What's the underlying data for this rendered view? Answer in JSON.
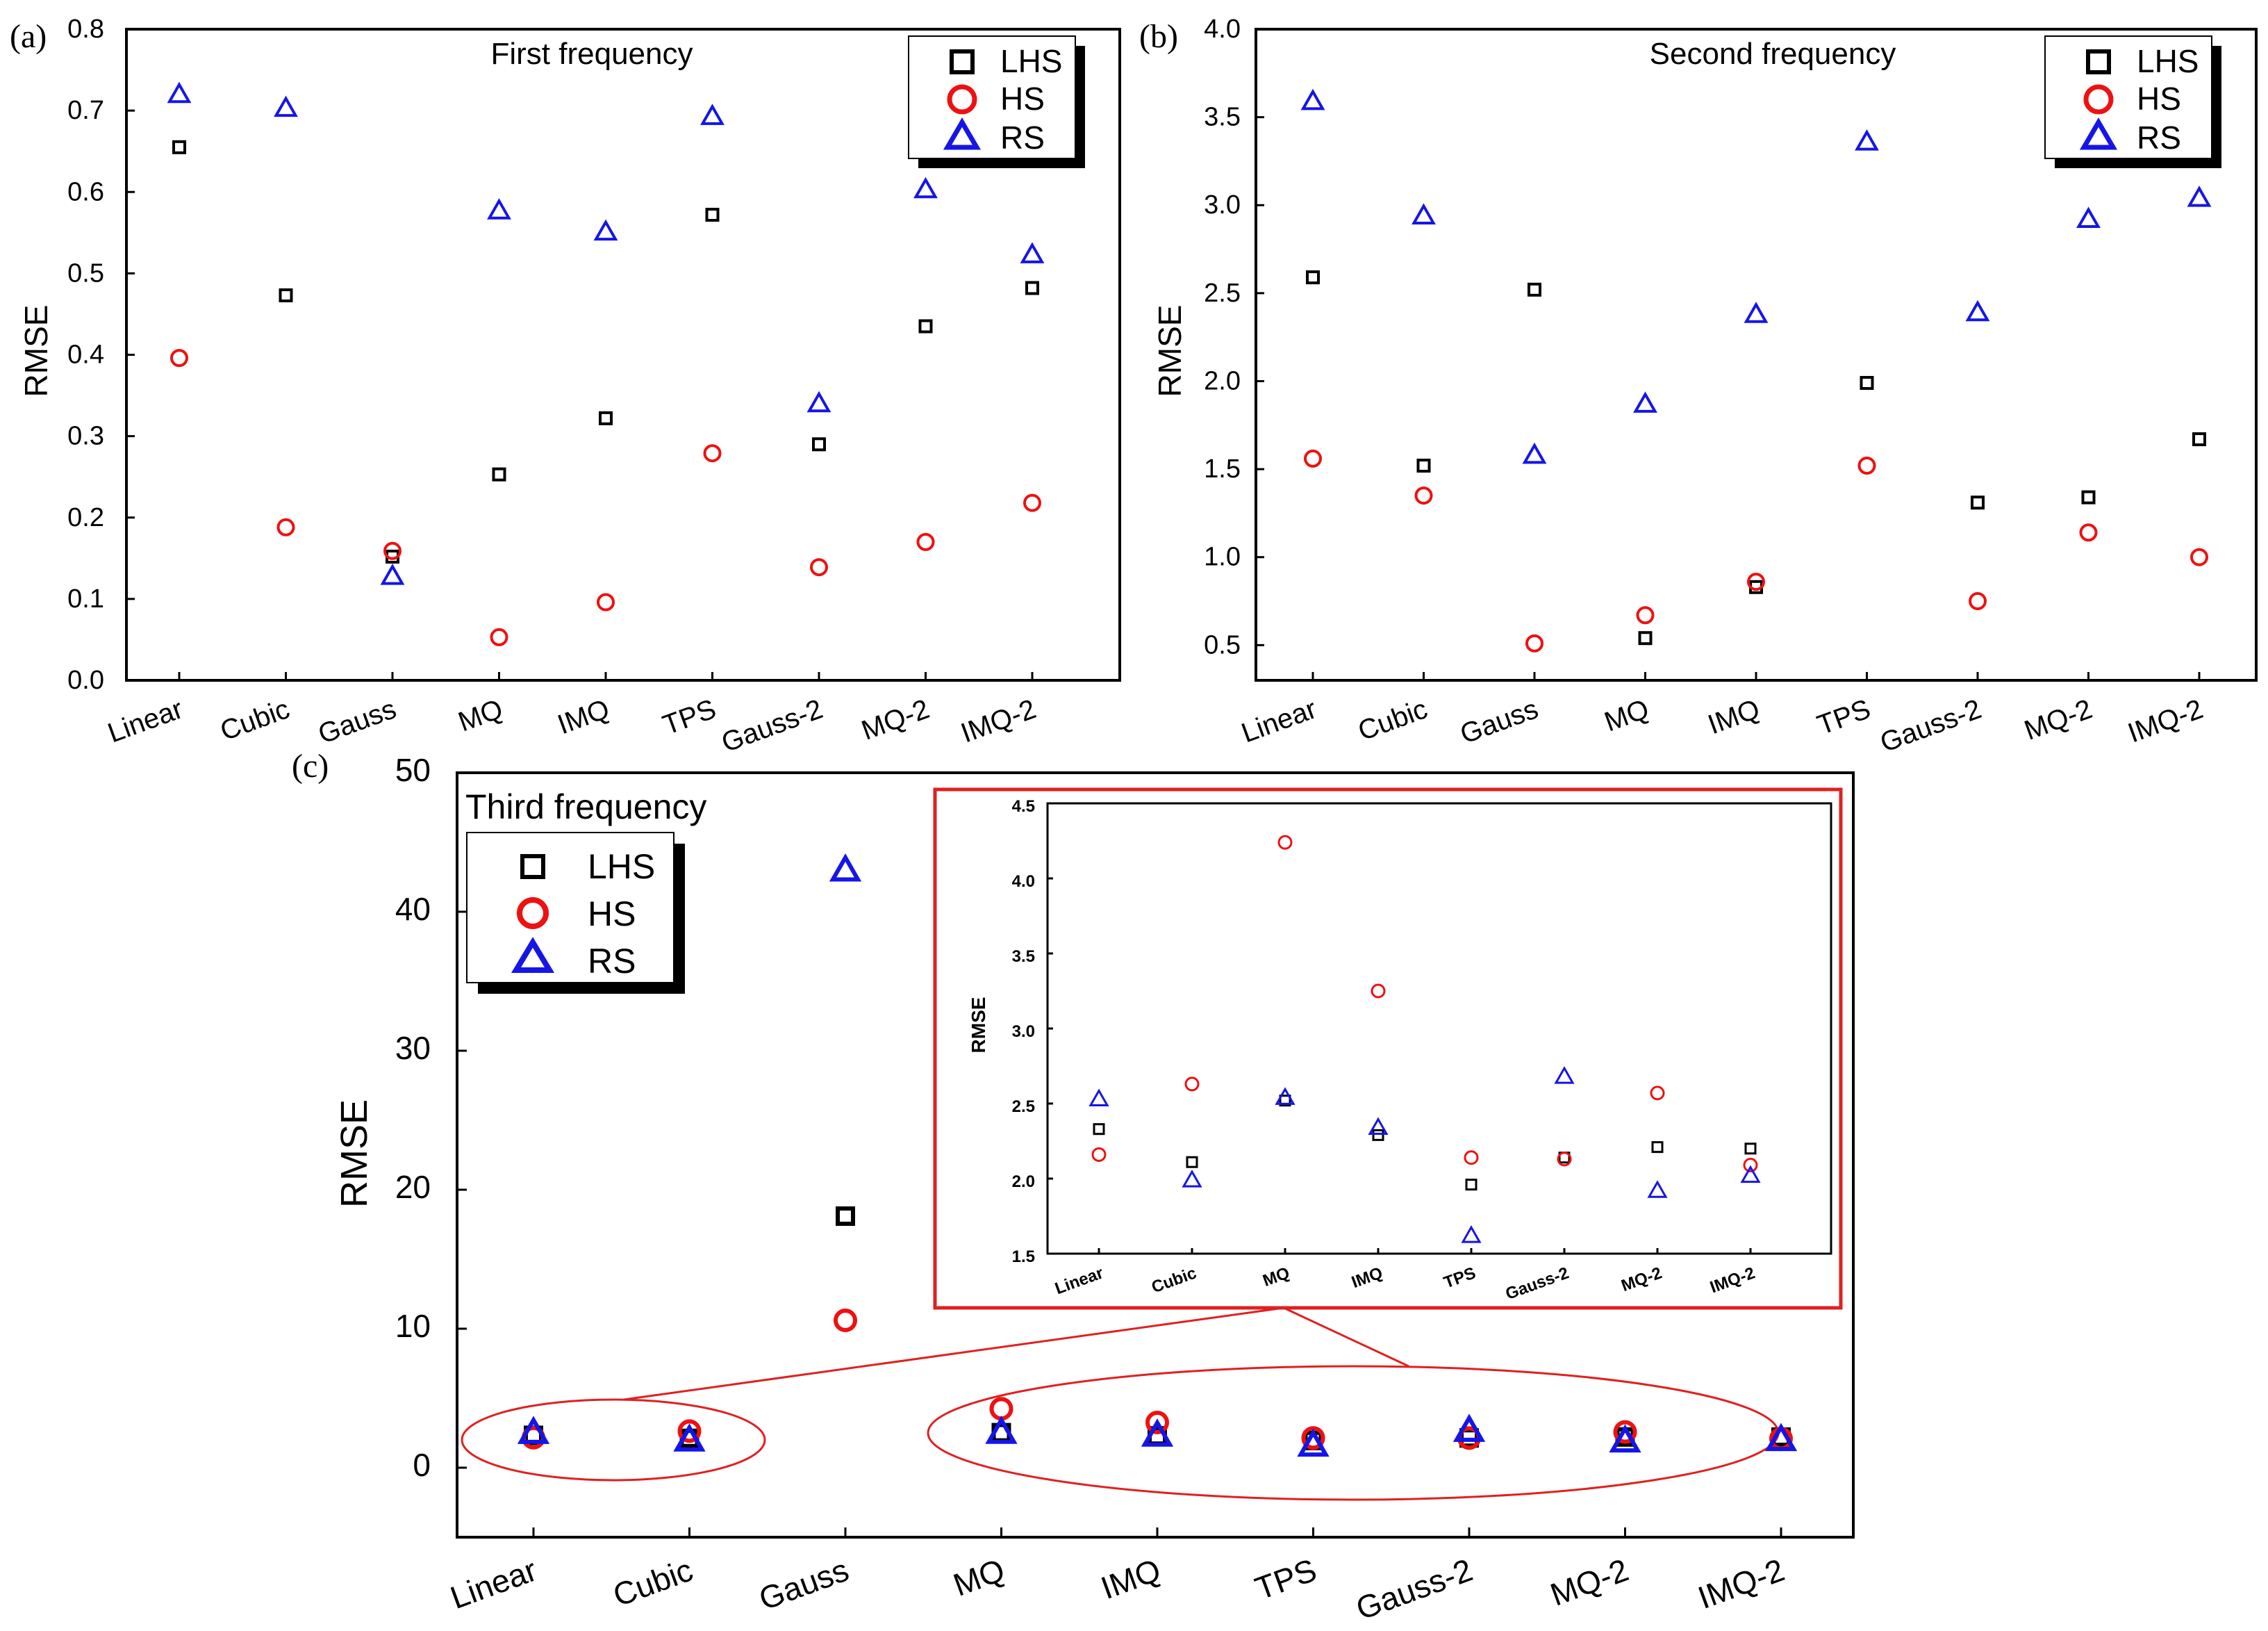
{
  "figure": {
    "categories": [
      "Linear",
      "Cubic",
      "Gauss",
      "MQ",
      "IMQ",
      "TPS",
      "Gauss-2",
      "MQ-2",
      "IMQ-2"
    ],
    "legend": [
      "LHS",
      "HS",
      "RS"
    ],
    "colors": {
      "LHS": "#000000",
      "HS": "#ee1111",
      "RS": "#1515e8",
      "highlight": "#e02020"
    }
  },
  "chart_data": [
    {
      "type": "scatter",
      "panel_label": "(a)",
      "title": "First frequency",
      "ylabel": "RMSE",
      "xlabel": "",
      "ylim": [
        0.0,
        0.8
      ],
      "yticks": [
        "0.0",
        "0.1",
        "0.2",
        "0.3",
        "0.4",
        "0.5",
        "0.6",
        "0.7",
        "0.8"
      ],
      "legend_position": "top-right",
      "series": [
        {
          "name": "LHS",
          "values": [
            0.655,
            0.473,
            0.152,
            0.253,
            0.322,
            0.572,
            0.29,
            0.435,
            0.482
          ]
        },
        {
          "name": "HS",
          "values": [
            0.396,
            0.188,
            0.159,
            0.053,
            0.096,
            0.279,
            0.139,
            0.17,
            0.218
          ]
        },
        {
          "name": "RS",
          "values": [
            0.72,
            0.703,
            0.128,
            0.577,
            0.551,
            0.693,
            0.34,
            0.603,
            0.523
          ]
        }
      ]
    },
    {
      "type": "scatter",
      "panel_label": "(b)",
      "title": "Second frequency",
      "ylabel": "RMSE",
      "xlabel": "",
      "ylim": [
        0.3,
        4.0
      ],
      "yticks": [
        "0.5",
        "1.0",
        "1.5",
        "2.0",
        "2.5",
        "3.0",
        "3.5",
        "4.0"
      ],
      "legend_position": "top-right",
      "series": [
        {
          "name": "LHS",
          "values": [
            2.59,
            1.52,
            2.52,
            0.54,
            0.83,
            1.99,
            1.31,
            1.34,
            1.67
          ]
        },
        {
          "name": "HS",
          "values": [
            1.56,
            1.35,
            0.51,
            0.67,
            0.86,
            1.52,
            0.75,
            1.14,
            1.0
          ]
        },
        {
          "name": "RS",
          "values": [
            3.59,
            2.94,
            1.58,
            1.87,
            2.38,
            3.36,
            2.39,
            2.92,
            3.04
          ]
        }
      ]
    },
    {
      "type": "scatter",
      "panel_label": "(c)",
      "title": "Third frequency",
      "ylabel": "RMSE",
      "xlabel": "",
      "ylim": [
        -5,
        50
      ],
      "yticks": [
        "0",
        "10",
        "20",
        "30",
        "40",
        "50"
      ],
      "legend_position": "top-left",
      "series": [
        {
          "name": "LHS",
          "values": [
            2.33,
            2.11,
            18.1,
            2.52,
            2.29,
            1.96,
            2.14,
            2.21,
            2.2
          ]
        },
        {
          "name": "HS",
          "values": [
            2.16,
            2.63,
            10.6,
            4.24,
            3.25,
            2.14,
            2.13,
            2.57,
            2.09
          ]
        },
        {
          "name": "RS",
          "values": [
            2.53,
            1.99,
            43.0,
            2.54,
            2.34,
            1.62,
            2.68,
            1.92,
            2.02
          ]
        }
      ]
    },
    {
      "type": "scatter",
      "panel_label": "",
      "title": "",
      "ylabel": "RMSE",
      "xlabel": "",
      "ylim": [
        1.5,
        4.5
      ],
      "yticks": [
        "1.5",
        "2.0",
        "2.5",
        "3.0",
        "3.5",
        "4.0",
        "4.5"
      ],
      "categories": [
        "Linear",
        "Cubic",
        "MQ",
        "IMQ",
        "TPS",
        "Gauss-2",
        "MQ-2",
        "IMQ-2"
      ],
      "series": [
        {
          "name": "LHS",
          "values": [
            2.33,
            2.11,
            2.52,
            2.29,
            1.96,
            2.14,
            2.21,
            2.2
          ]
        },
        {
          "name": "HS",
          "values": [
            2.16,
            2.63,
            4.24,
            3.25,
            2.14,
            2.13,
            2.57,
            2.09
          ]
        },
        {
          "name": "RS",
          "values": [
            2.53,
            1.99,
            2.54,
            2.34,
            1.62,
            2.68,
            1.92,
            2.02
          ]
        }
      ]
    }
  ]
}
